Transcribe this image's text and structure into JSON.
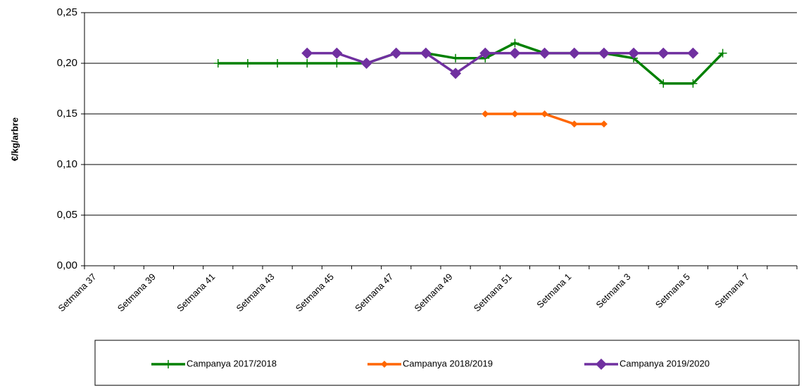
{
  "chart_data": {
    "type": "line",
    "y_label": "€/kg/arbre",
    "categories": [
      "Setmana 37",
      null,
      "Setmana 39",
      null,
      "Setmana 41",
      null,
      "Setmana 43",
      null,
      "Setmana 45",
      null,
      "Setmana 47",
      null,
      "Setmana 49",
      null,
      "Setmana 51",
      null,
      "Setmana 1",
      null,
      "Setmana 3",
      null,
      "Setmana 5",
      null,
      "Setmana 7",
      null
    ],
    "series": [
      {
        "name": "Campanya 2017/2018",
        "color": "#008000",
        "marker": "plus",
        "values": [
          null,
          null,
          null,
          null,
          0.2,
          0.2,
          0.2,
          0.2,
          0.2,
          0.2,
          0.21,
          0.21,
          0.205,
          0.205,
          0.22,
          0.21,
          0.21,
          0.21,
          0.205,
          0.18,
          0.18,
          0.21,
          null,
          null
        ]
      },
      {
        "name": "Campanya 2018/2019",
        "color": "#ff6600",
        "marker": "small-diamond",
        "values": [
          null,
          null,
          null,
          null,
          null,
          null,
          null,
          null,
          null,
          null,
          null,
          null,
          null,
          0.15,
          0.15,
          0.15,
          0.14,
          0.14,
          null,
          null,
          null,
          null,
          null,
          null
        ]
      },
      {
        "name": "Campanya 2019/2020",
        "color": "#7030a0",
        "marker": "diamond",
        "values": [
          null,
          null,
          null,
          null,
          null,
          null,
          null,
          0.21,
          0.21,
          0.2,
          0.21,
          0.21,
          0.19,
          0.21,
          0.21,
          0.21,
          0.21,
          0.21,
          0.21,
          0.21,
          0.21,
          null,
          null,
          null
        ]
      }
    ],
    "ylim": [
      0,
      0.25
    ],
    "yticks": [
      {
        "value": 0,
        "label": "0,00"
      },
      {
        "value": 0.05,
        "label": "0,05"
      },
      {
        "value": 0.1,
        "label": "0,10"
      },
      {
        "value": 0.15,
        "label": "0,15"
      },
      {
        "value": 0.2,
        "label": "0,20"
      },
      {
        "value": 0.25,
        "label": "0,25"
      }
    ],
    "grid": true,
    "legend": "bottom"
  }
}
